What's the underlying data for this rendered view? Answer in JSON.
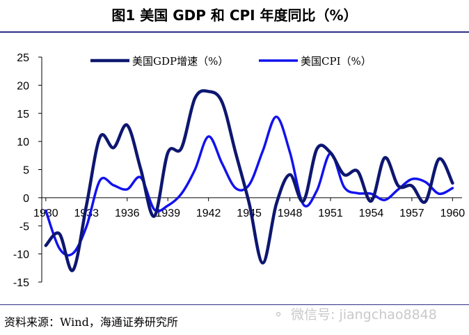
{
  "figure_title": "图1  美国 GDP 和 CPI 年度同比（%）",
  "source": "资料来源：Wind，海通证券研究所",
  "watermark": "微信号: jiangchao8848",
  "watermark_icon": "wechat-icon",
  "chart_data": {
    "type": "line",
    "title": "",
    "xlabel": "",
    "ylabel": "",
    "xlim": [
      1929.7,
      1960.7
    ],
    "ylim": [
      -15,
      25
    ],
    "yticks": [
      -15,
      -10,
      -5,
      0,
      5,
      10,
      15,
      20,
      25
    ],
    "xticks": [
      1930,
      1933,
      1936,
      1939,
      1942,
      1945,
      1948,
      1951,
      1954,
      1957,
      1960
    ],
    "grid": false,
    "legend_position": "top",
    "x": [
      1930,
      1931,
      1932,
      1933,
      1934,
      1935,
      1936,
      1937,
      1938,
      1939,
      1940,
      1941,
      1942,
      1943,
      1944,
      1945,
      1946,
      1947,
      1948,
      1949,
      1950,
      1951,
      1952,
      1953,
      1954,
      1955,
      1956,
      1957,
      1958,
      1959,
      1960
    ],
    "series": [
      {
        "name": "美国GDP增速（%）",
        "color": "#0d1770",
        "values": [
          -8.5,
          -6.4,
          -12.9,
          -1.3,
          10.8,
          8.9,
          12.9,
          5.1,
          -3.3,
          8.0,
          8.8,
          17.7,
          18.9,
          17.0,
          8.0,
          -1.0,
          -11.6,
          -1.1,
          4.1,
          -0.6,
          8.7,
          8.0,
          4.1,
          4.7,
          -0.6,
          7.1,
          2.1,
          2.1,
          -0.7,
          6.9,
          2.6
        ]
      },
      {
        "name": "美国CPI（%）",
        "color": "#1212ee",
        "values": [
          -2.3,
          -9.0,
          -9.9,
          -5.1,
          3.1,
          2.2,
          1.5,
          3.6,
          -2.1,
          -1.4,
          0.7,
          5.0,
          10.9,
          6.1,
          1.7,
          2.3,
          8.3,
          14.4,
          8.1,
          -1.2,
          1.3,
          7.9,
          1.9,
          0.8,
          0.7,
          -0.4,
          1.5,
          3.3,
          2.8,
          0.7,
          1.7
        ]
      }
    ]
  }
}
